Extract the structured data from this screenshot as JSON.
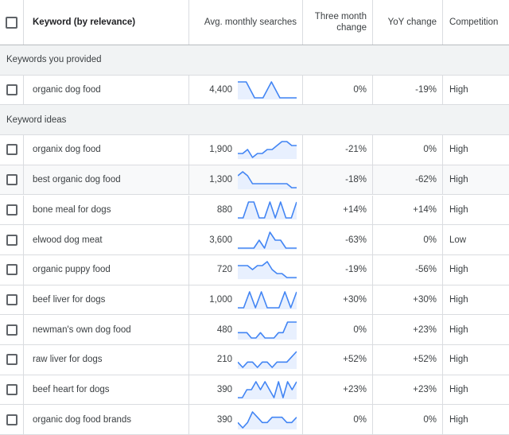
{
  "header": {
    "keyword": "Keyword (by relevance)",
    "avg_searches": "Avg. monthly searches",
    "three_month_line1": "Three month",
    "three_month_line2": "change",
    "yoy": "YoY change",
    "competition": "Competition"
  },
  "groups": {
    "provided": "Keywords you provided",
    "ideas": "Keyword ideas"
  },
  "colors": {
    "sparkline": "#4285f4",
    "sparkline_fill": "#e8f0fe",
    "group_bg": "#f1f3f4"
  },
  "rows": [
    {
      "keyword": "organic dog food",
      "avg": "4,400",
      "trend": [
        7,
        7,
        1,
        1,
        7,
        1,
        1,
        1
      ],
      "three_month": "0%",
      "yoy": "-19%",
      "competition": "High"
    },
    {
      "keyword": "organix dog food",
      "avg": "1,900",
      "trend": [
        2,
        2,
        3,
        1,
        2,
        2,
        3,
        3,
        4,
        5,
        5,
        4,
        4
      ],
      "three_month": "-21%",
      "yoy": "0%",
      "competition": "High"
    },
    {
      "keyword": "best organic dog food",
      "avg": "1,300",
      "trend": [
        4,
        5,
        4,
        2,
        2,
        2,
        2,
        2,
        2,
        2,
        2,
        1,
        1
      ],
      "three_month": "-18%",
      "yoy": "-62%",
      "competition": "High"
    },
    {
      "keyword": "bone meal for dogs",
      "avg": "880",
      "trend": [
        1,
        1,
        4,
        4,
        1,
        1,
        4,
        1,
        4,
        1,
        1,
        4
      ],
      "three_month": "+14%",
      "yoy": "+14%",
      "competition": "High"
    },
    {
      "keyword": "elwood dog meat",
      "avg": "3,600",
      "trend": [
        1,
        1,
        1,
        1,
        2,
        1,
        3,
        2,
        2,
        1,
        1,
        1
      ],
      "three_month": "-63%",
      "yoy": "0%",
      "competition": "Low"
    },
    {
      "keyword": "organic puppy food",
      "avg": "720",
      "trend": [
        4,
        4,
        4,
        3,
        4,
        4,
        5,
        3,
        2,
        2,
        1,
        1,
        1
      ],
      "three_month": "-19%",
      "yoy": "-56%",
      "competition": "High"
    },
    {
      "keyword": "beef liver for dogs",
      "avg": "1,000",
      "trend": [
        1,
        1,
        3,
        1,
        3,
        1,
        1,
        1,
        3,
        1,
        3
      ],
      "three_month": "+30%",
      "yoy": "+30%",
      "competition": "High"
    },
    {
      "keyword": "newman's own dog food",
      "avg": "480",
      "trend": [
        2,
        2,
        2,
        1,
        1,
        2,
        1,
        1,
        1,
        2,
        2,
        4,
        4,
        4
      ],
      "three_month": "0%",
      "yoy": "+23%",
      "competition": "High"
    },
    {
      "keyword": "raw liver for dogs",
      "avg": "210",
      "trend": [
        2,
        1,
        2,
        2,
        1,
        2,
        2,
        1,
        2,
        2,
        2,
        3,
        4
      ],
      "three_month": "+52%",
      "yoy": "+52%",
      "competition": "High"
    },
    {
      "keyword": "beef heart for dogs",
      "avg": "390",
      "trend": [
        1,
        1,
        2,
        2,
        3,
        2,
        3,
        2,
        1,
        3,
        1,
        3,
        2,
        3
      ],
      "three_month": "+23%",
      "yoy": "+23%",
      "competition": "High"
    },
    {
      "keyword": "organic dog food brands",
      "avg": "390",
      "trend": [
        2,
        1,
        2,
        4,
        3,
        2,
        2,
        3,
        3,
        3,
        2,
        2,
        3
      ],
      "three_month": "0%",
      "yoy": "0%",
      "competition": "High"
    }
  ]
}
